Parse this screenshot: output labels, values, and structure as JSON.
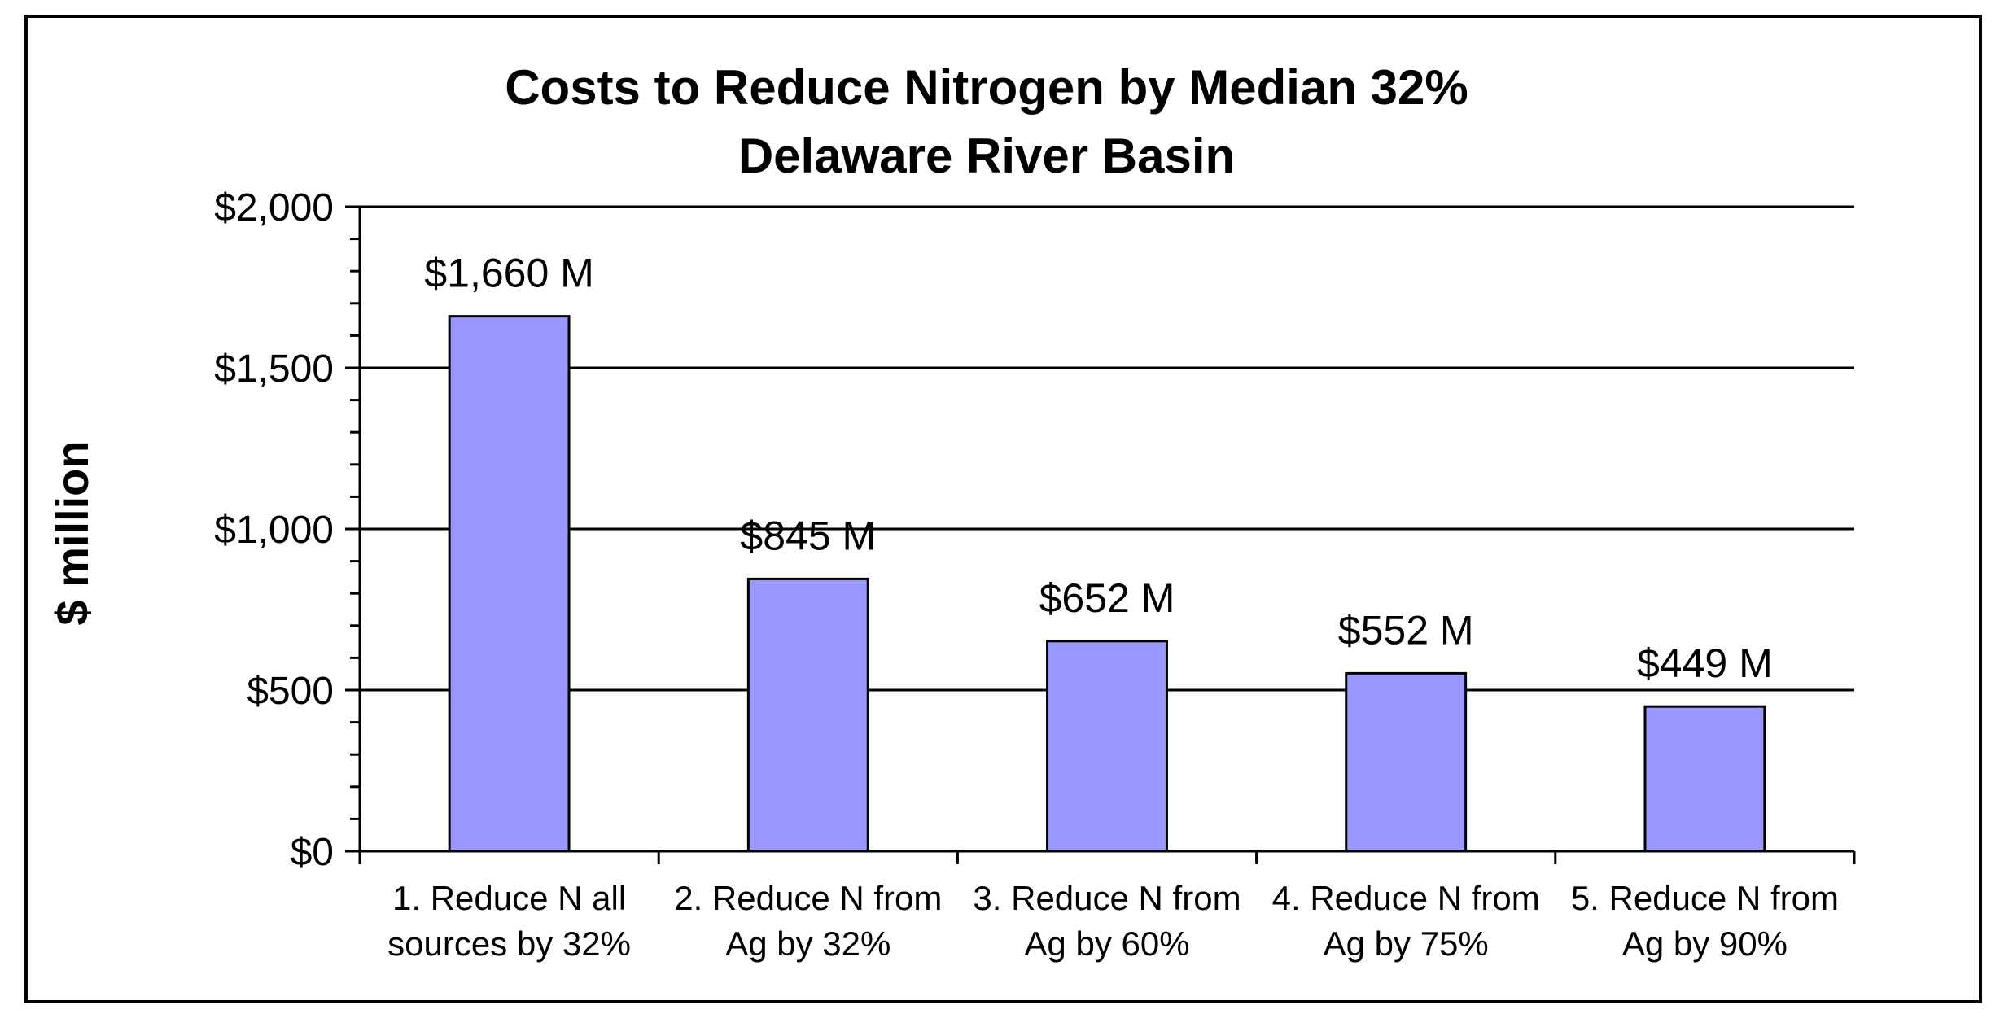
{
  "chart_data": {
    "type": "bar",
    "title": "Costs to Reduce Nitrogen by Median 32%",
    "subtitle": "Delaware River Basin",
    "xlabel": "",
    "ylabel": "$ million",
    "ylim": [
      0,
      2000
    ],
    "yticks": [
      0,
      500,
      1000,
      1500,
      2000
    ],
    "ytick_labels": [
      "$0",
      "$500",
      "$1,000",
      "$1,500",
      "$2,000"
    ],
    "grid": true,
    "bar_color": "#9999ff",
    "categories": [
      [
        "1. Reduce N all",
        "sources by 32%"
      ],
      [
        "2. Reduce N from",
        "Ag by 32%"
      ],
      [
        "3. Reduce N from",
        "Ag by 60%"
      ],
      [
        "4. Reduce N from",
        "Ag by 75%"
      ],
      [
        "5. Reduce N from",
        "Ag by 90%"
      ]
    ],
    "values": [
      1660,
      845,
      652,
      552,
      449
    ],
    "data_labels": [
      "$1,660 M",
      "$845 M",
      "$652 M",
      "$552 M",
      "$449 M"
    ]
  }
}
